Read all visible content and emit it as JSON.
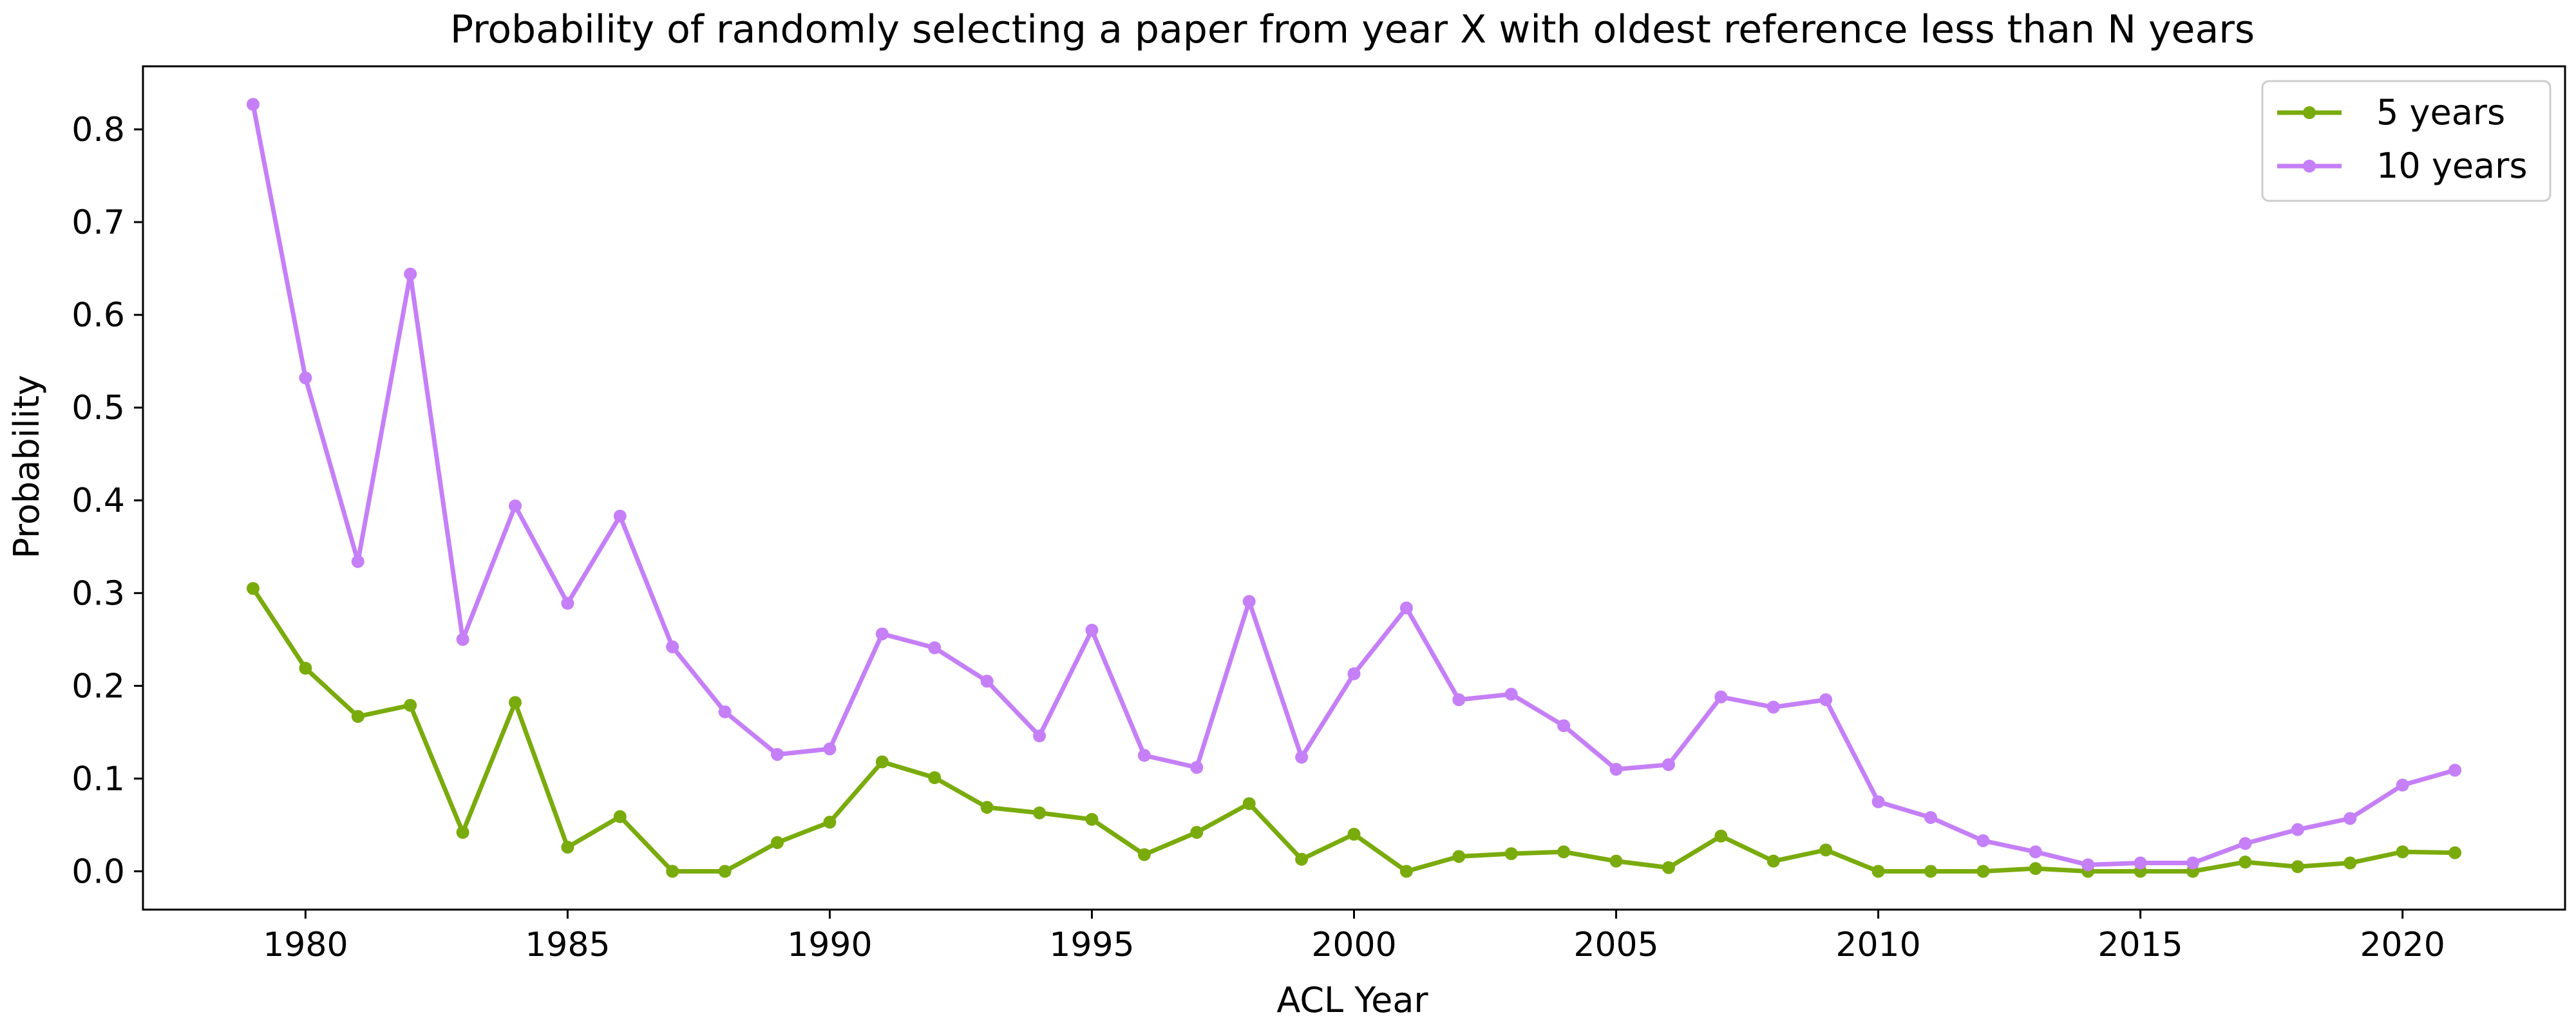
{
  "chart_data": {
    "type": "line",
    "title": "Probability of randomly selecting a paper from year X with oldest reference less than N years",
    "xlabel": "ACL Year",
    "ylabel": "Probability",
    "xlim": [
      1976.9,
      2023.1
    ],
    "ylim": [
      -0.0413,
      0.868
    ],
    "xticks": [
      1980,
      1985,
      1990,
      1995,
      2000,
      2005,
      2010,
      2015,
      2020
    ],
    "yticks": [
      0.0,
      0.1,
      0.2,
      0.3,
      0.4,
      0.5,
      0.6,
      0.7,
      0.8
    ],
    "ytick_labels": [
      "0.0",
      "0.1",
      "0.2",
      "0.3",
      "0.4",
      "0.5",
      "0.6",
      "0.7",
      "0.8"
    ],
    "grid": false,
    "legend_position": "top-right",
    "x": [
      1979,
      1980,
      1981,
      1982,
      1983,
      1984,
      1985,
      1986,
      1987,
      1988,
      1989,
      1990,
      1991,
      1992,
      1993,
      1994,
      1995,
      1996,
      1997,
      1998,
      1999,
      2000,
      2001,
      2002,
      2003,
      2004,
      2005,
      2006,
      2007,
      2008,
      2009,
      2010,
      2011,
      2012,
      2013,
      2014,
      2015,
      2016,
      2017,
      2018,
      2019,
      2020,
      2021
    ],
    "series": [
      {
        "name": "5 years",
        "color": "#7aab0c",
        "values": [
          0.305,
          0.219,
          0.167,
          0.179,
          0.042,
          0.182,
          0.026,
          0.059,
          0.0,
          0.0,
          0.031,
          0.053,
          0.118,
          0.101,
          0.069,
          0.063,
          0.056,
          0.018,
          0.042,
          0.073,
          0.013,
          0.04,
          0.0,
          0.016,
          0.019,
          0.021,
          0.011,
          0.004,
          0.038,
          0.011,
          0.023,
          0.0,
          0.0,
          0.0,
          0.003,
          0.0,
          0.0,
          0.0,
          0.01,
          0.005,
          0.009,
          0.021,
          0.02
        ]
      },
      {
        "name": "10 years",
        "color": "#c57ff7",
        "values": [
          0.827,
          0.532,
          0.334,
          0.644,
          0.25,
          0.394,
          0.289,
          0.383,
          0.242,
          0.172,
          0.126,
          0.132,
          0.256,
          0.241,
          0.205,
          0.146,
          0.26,
          0.125,
          0.112,
          0.291,
          0.123,
          0.213,
          0.284,
          0.185,
          0.191,
          0.157,
          0.11,
          0.115,
          0.188,
          0.177,
          0.185,
          0.075,
          0.058,
          0.033,
          0.021,
          0.007,
          0.009,
          0.009,
          0.03,
          0.045,
          0.057,
          0.093,
          0.109
        ]
      }
    ]
  }
}
